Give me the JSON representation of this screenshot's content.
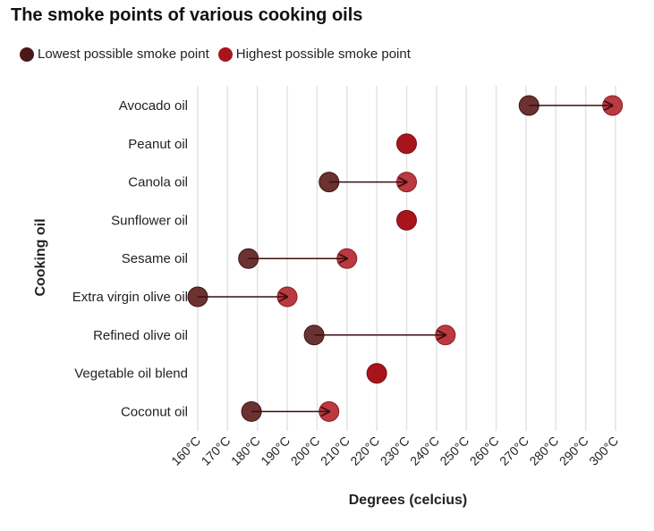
{
  "chart_data": {
    "type": "dumbbell",
    "title": "The smoke points of various cooking oils",
    "xlabel": "Degrees (celcius)",
    "ylabel": "Cooking oil",
    "xlim": [
      160,
      300
    ],
    "xticks": [
      "160°C",
      "170°C",
      "180°C",
      "190°C",
      "200°C",
      "210°C",
      "220°C",
      "230°C",
      "240°C",
      "250°C",
      "260°C",
      "270°C",
      "280°C",
      "290°C",
      "300°C"
    ],
    "grid": "vertical",
    "legend_position": "top-left",
    "series": [
      {
        "name": "Lowest possible smoke point",
        "color": "#5c1f1f"
      },
      {
        "name": "Highest possible smoke point",
        "color": "#a8141c"
      }
    ],
    "categories": [
      "Avocado oil",
      "Peanut oil",
      "Canola oil",
      "Sunflower oil",
      "Sesame oil",
      "Extra virgin olive oil",
      "Refined olive oil",
      "Vegetable oil blend",
      "Coconut oil"
    ],
    "low": [
      271,
      230,
      204,
      230,
      177,
      160,
      199,
      220,
      178
    ],
    "high": [
      299,
      230,
      230,
      230,
      210,
      190,
      243,
      220,
      204
    ]
  }
}
